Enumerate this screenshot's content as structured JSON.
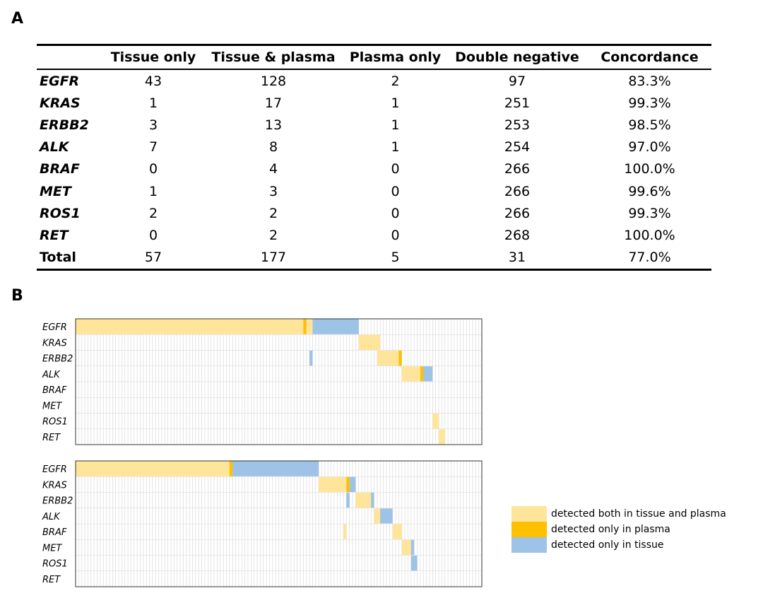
{
  "panel_a_label": "A",
  "panel_b_label": "B",
  "colors": {
    "both": "#FFE59A",
    "plasma_only": "#FFC000",
    "tissue_only": "#9DC3E6",
    "grid": "#d4d4d4",
    "frame": "#333333"
  },
  "table": {
    "headers": [
      "",
      "Tissue only",
      "Tissue & plasma",
      "Plasma only",
      "Double negative",
      "Concordance"
    ],
    "rows": [
      [
        "EGFR",
        "43",
        "128",
        "2",
        "97",
        "83.3%"
      ],
      [
        "KRAS",
        "1",
        "17",
        "1",
        "251",
        "99.3%"
      ],
      [
        "ERBB2",
        "3",
        "13",
        "1",
        "253",
        "98.5%"
      ],
      [
        "ALK",
        "7",
        "8",
        "1",
        "254",
        "97.0%"
      ],
      [
        "BRAF",
        "0",
        "4",
        "0",
        "266",
        "100.0%"
      ],
      [
        "MET",
        "1",
        "3",
        "0",
        "266",
        "99.6%"
      ],
      [
        "ROS1",
        "2",
        "2",
        "0",
        "266",
        "99.3%"
      ],
      [
        "RET",
        "0",
        "2",
        "0",
        "268",
        "100.0%"
      ],
      [
        "Total",
        "57",
        "177",
        "5",
        "31",
        "77.0%"
      ]
    ]
  },
  "chart_data": [
    {
      "type": "heatmap",
      "rows": [
        "EGFR",
        "KRAS",
        "ERBB2",
        "ALK",
        "BRAF",
        "MET",
        "ROS1",
        "RET"
      ],
      "n_columns": 132,
      "legend": [
        "both",
        "plasma",
        "tissue"
      ],
      "segments": [
        {
          "row": 0,
          "start": 0,
          "end": 74,
          "status": "both"
        },
        {
          "row": 0,
          "start": 74,
          "end": 75,
          "status": "plasma"
        },
        {
          "row": 0,
          "start": 75,
          "end": 77,
          "status": "both"
        },
        {
          "row": 0,
          "start": 77,
          "end": 92,
          "status": "tissue"
        },
        {
          "row": 1,
          "start": 92,
          "end": 99,
          "status": "both"
        },
        {
          "row": 2,
          "start": 76,
          "end": 77,
          "status": "tissue"
        },
        {
          "row": 2,
          "start": 98,
          "end": 105,
          "status": "both"
        },
        {
          "row": 2,
          "start": 105,
          "end": 106,
          "status": "plasma"
        },
        {
          "row": 3,
          "start": 106,
          "end": 112,
          "status": "both"
        },
        {
          "row": 3,
          "start": 112,
          "end": 113,
          "status": "plasma"
        },
        {
          "row": 3,
          "start": 113,
          "end": 116,
          "status": "tissue"
        },
        {
          "row": 6,
          "start": 116,
          "end": 118,
          "status": "both"
        },
        {
          "row": 7,
          "start": 118,
          "end": 120,
          "status": "both"
        }
      ]
    },
    {
      "type": "heatmap",
      "rows": [
        "EGFR",
        "KRAS",
        "ERBB2",
        "ALK",
        "BRAF",
        "MET",
        "ROS1",
        "RET"
      ],
      "n_columns": 132,
      "legend": [
        "both",
        "plasma",
        "tissue"
      ],
      "segments": [
        {
          "row": 0,
          "start": 0,
          "end": 50,
          "status": "both"
        },
        {
          "row": 0,
          "start": 50,
          "end": 51,
          "status": "plasma"
        },
        {
          "row": 0,
          "start": 51,
          "end": 79,
          "status": "tissue"
        },
        {
          "row": 1,
          "start": 79,
          "end": 88,
          "status": "both"
        },
        {
          "row": 1,
          "start": 88,
          "end": 89,
          "status": "plasma"
        },
        {
          "row": 1,
          "start": 89,
          "end": 91,
          "status": "tissue"
        },
        {
          "row": 2,
          "start": 88,
          "end": 89,
          "status": "tissue"
        },
        {
          "row": 2,
          "start": 91,
          "end": 96,
          "status": "both"
        },
        {
          "row": 2,
          "start": 96,
          "end": 97,
          "status": "tissue"
        },
        {
          "row": 3,
          "start": 97,
          "end": 99,
          "status": "both"
        },
        {
          "row": 3,
          "start": 99,
          "end": 103,
          "status": "tissue"
        },
        {
          "row": 4,
          "start": 87,
          "end": 88,
          "status": "both"
        },
        {
          "row": 4,
          "start": 103,
          "end": 106,
          "status": "both"
        },
        {
          "row": 5,
          "start": 106,
          "end": 109,
          "status": "both"
        },
        {
          "row": 5,
          "start": 109,
          "end": 110,
          "status": "tissue"
        },
        {
          "row": 6,
          "start": 109,
          "end": 111,
          "status": "tissue"
        }
      ]
    }
  ],
  "legend_items": [
    {
      "key": "both",
      "label": "detected both in tissue and plasma"
    },
    {
      "key": "plasma",
      "label": "detected only in plasma"
    },
    {
      "key": "tissue",
      "label": "detected only in tissue"
    }
  ]
}
